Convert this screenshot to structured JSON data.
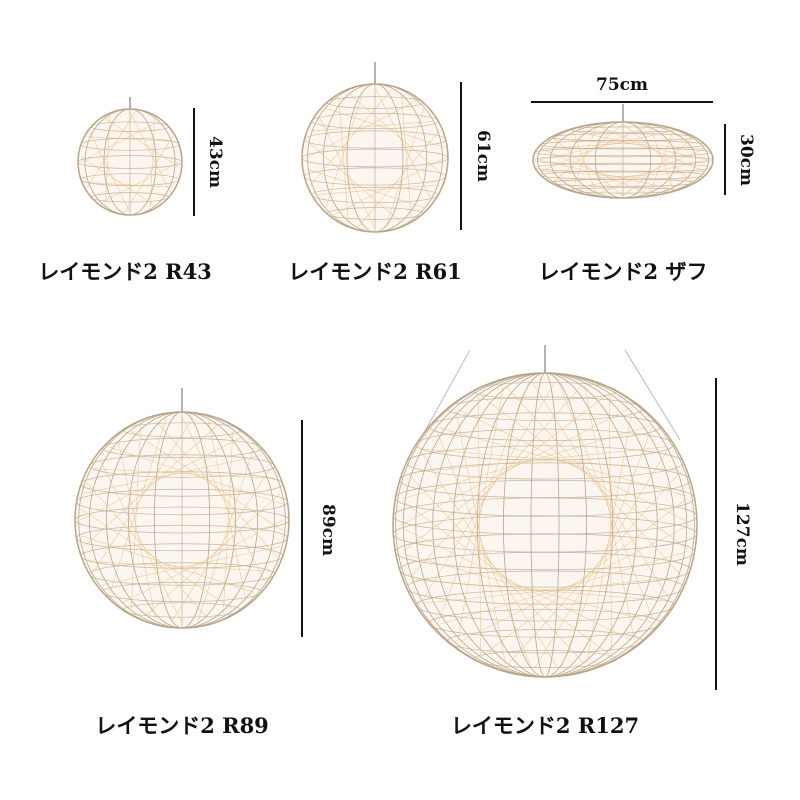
{
  "colors": {
    "frame": "#b8a58a",
    "glow": "#e8b878",
    "dimension_line": "#111111",
    "background": "#ffffff"
  },
  "products": [
    {
      "name": "レイモンド2 R43",
      "height": "43cm"
    },
    {
      "name": "レイモンド2 R61",
      "height": "61cm"
    },
    {
      "name": "レイモンド2 ザフ",
      "width": "75cm",
      "height": "30cm"
    },
    {
      "name": "レイモンド2 R89",
      "height": "89cm"
    },
    {
      "name": "レイモンド2 R127",
      "height": "127cm"
    }
  ]
}
